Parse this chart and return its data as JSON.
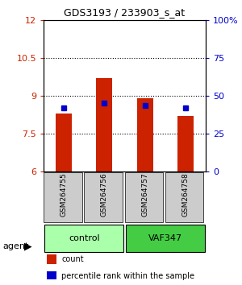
{
  "title": "GDS3193 / 233903_s_at",
  "samples": [
    "GSM264755",
    "GSM264756",
    "GSM264757",
    "GSM264758"
  ],
  "count_values": [
    8.3,
    9.7,
    8.9,
    8.2
  ],
  "percentile_values": [
    8.5,
    8.7,
    8.6,
    8.5
  ],
  "ylim_left": [
    6,
    12
  ],
  "ylim_right": [
    0,
    100
  ],
  "yticks_left": [
    6,
    7.5,
    9,
    10.5,
    12
  ],
  "yticks_right": [
    0,
    25,
    50,
    75,
    100
  ],
  "ytick_labels_right": [
    "0",
    "25",
    "50",
    "75",
    "100%"
  ],
  "bar_width": 0.4,
  "bar_color": "#cc2200",
  "percentile_color": "#0000cc",
  "groups": [
    {
      "label": "control",
      "samples": [
        0,
        1
      ],
      "color": "#aaffaa"
    },
    {
      "label": "VAF347",
      "samples": [
        2,
        3
      ],
      "color": "#44cc44"
    }
  ],
  "agent_label": "agent",
  "legend_items": [
    {
      "label": "count",
      "color": "#cc2200"
    },
    {
      "label": "percentile rank within the sample",
      "color": "#0000cc"
    }
  ],
  "grid_color": "#000000",
  "background_color": "#ffffff",
  "sample_box_color": "#cccccc"
}
